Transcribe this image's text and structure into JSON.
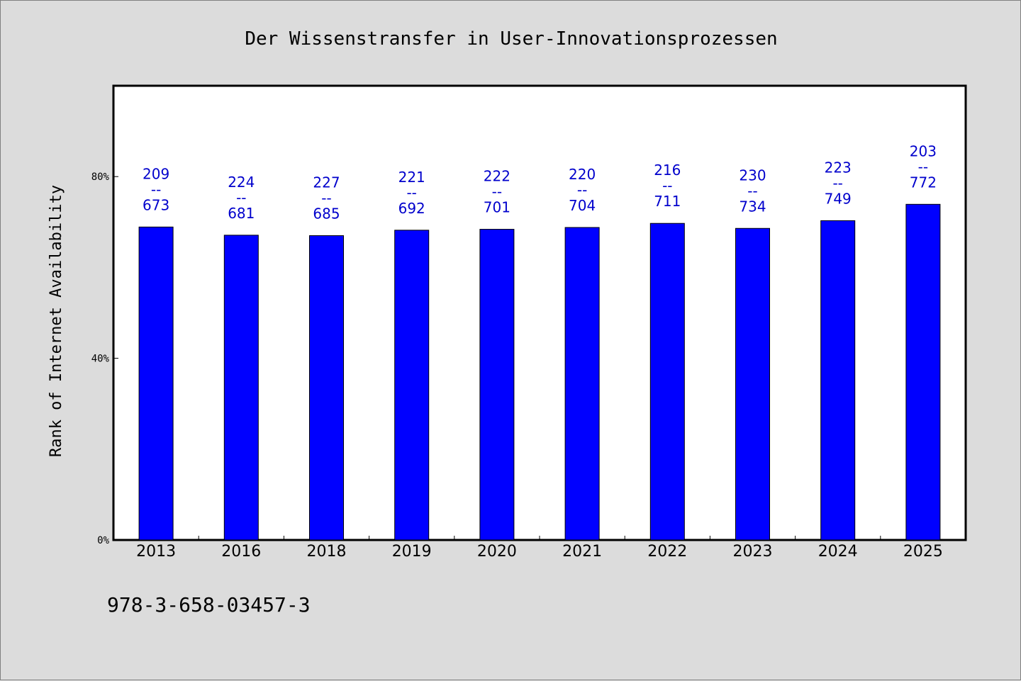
{
  "chart_data": {
    "type": "bar",
    "title": "Der Wissenstransfer in User-Innovationsprozessen",
    "ylabel": "Rank of Internet Availability",
    "xlabel": "",
    "ylim": [
      0,
      100
    ],
    "yticks": [
      {
        "value": 0,
        "label": "0%"
      },
      {
        "value": 40,
        "label": "40%"
      },
      {
        "value": 80,
        "label": "80%"
      }
    ],
    "categories": [
      "2013",
      "2016",
      "2018",
      "2019",
      "2020",
      "2021",
      "2022",
      "2023",
      "2024",
      "2025"
    ],
    "values": [
      68.9,
      67.1,
      67.0,
      68.2,
      68.4,
      68.8,
      69.7,
      68.6,
      70.3,
      73.9
    ],
    "labels_top": [
      "209",
      "224",
      "227",
      "221",
      "222",
      "220",
      "216",
      "230",
      "223",
      "203"
    ],
    "labels_sep": "--",
    "labels_bottom": [
      "673",
      "681",
      "685",
      "692",
      "701",
      "704",
      "711",
      "734",
      "749",
      "772"
    ],
    "grid": false,
    "legend": "none",
    "colors": {
      "bar": "#0000ff",
      "label": "#0000cc",
      "plot_bg": "#ffffff",
      "page_bg": "#dcdcdc"
    }
  },
  "footer": {
    "isbn": "978-3-658-03457-3"
  }
}
